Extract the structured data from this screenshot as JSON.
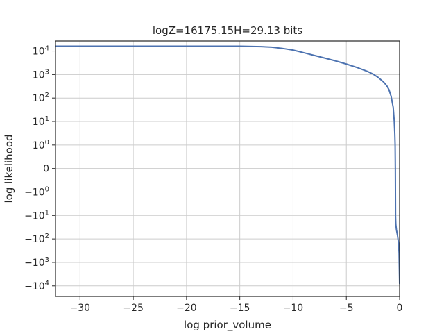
{
  "chart_data": {
    "type": "line",
    "title": "logZ=16175.15H=29.13 bits",
    "xlabel": "log prior_volume",
    "ylabel": "log likelihood",
    "xlim": [
      -32.3,
      0
    ],
    "yscale": "symlog",
    "grid": true,
    "colors": {
      "line": "#4c72b0",
      "grid": "#cccccc",
      "axes": "#262626",
      "text": "#262626"
    },
    "x_ticks": [
      {
        "value": -30,
        "label": "−30"
      },
      {
        "value": -25,
        "label": "−25"
      },
      {
        "value": -20,
        "label": "−20"
      },
      {
        "value": -15,
        "label": "−15"
      },
      {
        "value": -10,
        "label": "−10"
      },
      {
        "value": -5,
        "label": "−5"
      },
      {
        "value": 0,
        "label": "0"
      }
    ],
    "y_ticks": [
      {
        "value": 10000,
        "base": "10",
        "exp": "4"
      },
      {
        "value": 1000,
        "base": "10",
        "exp": "3"
      },
      {
        "value": 100,
        "base": "10",
        "exp": "2"
      },
      {
        "value": 10,
        "base": "10",
        "exp": "1"
      },
      {
        "value": 1,
        "base": "10",
        "exp": "0"
      },
      {
        "value": 0,
        "base": "0",
        "exp": ""
      },
      {
        "value": -1,
        "base": "−10",
        "exp": "0"
      },
      {
        "value": -10,
        "base": "−10",
        "exp": "1"
      },
      {
        "value": -100,
        "base": "−10",
        "exp": "2"
      },
      {
        "value": -1000,
        "base": "−10",
        "exp": "3"
      },
      {
        "value": -10000,
        "base": "−10",
        "exp": "4"
      }
    ],
    "series": [
      {
        "x": [
          -32.3,
          -30,
          -25,
          -20,
          -15,
          -13,
          -12,
          -11,
          -10,
          -9,
          -8,
          -7,
          -6,
          -5,
          -4,
          -3,
          -2.5,
          -2,
          -1.5,
          -1.2,
          -1,
          -0.8,
          -0.6,
          -0.5,
          -0.45,
          -0.42,
          -0.4,
          -0.39,
          -0.38,
          -0.37,
          -0.36,
          -0.35,
          -0.3,
          -0.2,
          -0.1,
          -0.05,
          0
        ],
        "y": [
          16175,
          16170,
          16160,
          16150,
          16100,
          15500,
          14700,
          13000,
          11000,
          8500,
          6500,
          5000,
          3800,
          2800,
          2000,
          1350,
          1050,
          750,
          480,
          330,
          230,
          120,
          40,
          10,
          3,
          1,
          0,
          -1,
          -10,
          -15,
          -20,
          -25,
          -40,
          -70,
          -150,
          -400,
          -8000
        ]
      }
    ]
  }
}
